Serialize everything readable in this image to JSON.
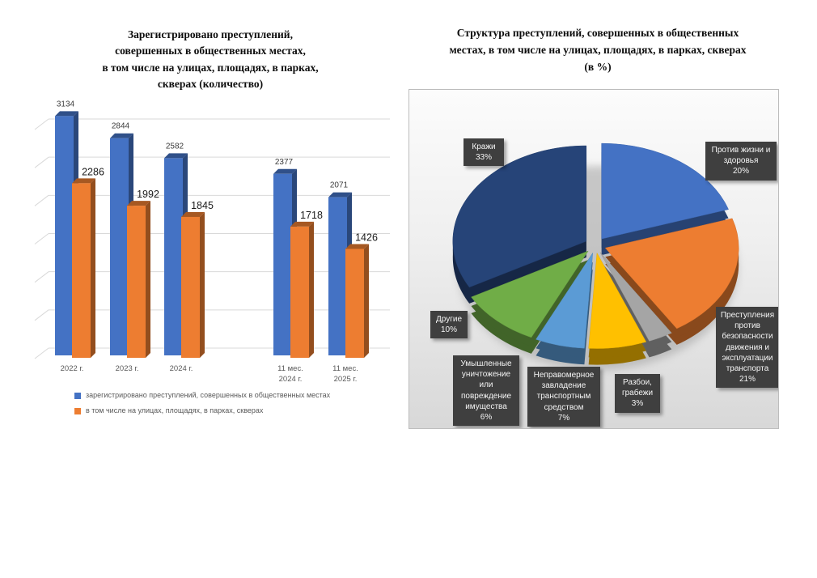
{
  "chart_data": [
    {
      "type": "bar",
      "title": "Зарегистрировано преступлений,\nсовершенных в общественных местах,\nв том числе на улицах, площадях, в парках,\nскверах (количество)",
      "categories": [
        "2022 г.",
        "2023 г.",
        "2024 г.",
        "11 мес.\n2024 г.",
        "11 мес.\n2025 г."
      ],
      "series": [
        {
          "name": "зарегистрировано преступлений, совершенных в общественных местах",
          "color": "#4472C4",
          "values": [
            3134,
            2844,
            2582,
            2377,
            2071
          ]
        },
        {
          "name": "в том числе на улицах, площадях, в парках, скверах",
          "color": "#ED7D31",
          "values": [
            2286,
            1992,
            1845,
            1718,
            1426
          ]
        }
      ],
      "ylim": [
        0,
        3500
      ],
      "gridline_step": 500,
      "grid": true,
      "legend_position": "bottom",
      "style": "3d-column"
    },
    {
      "type": "pie",
      "title": "Структура преступлений, совершенных в общественных\nместах, в том числе на улицах, площадях, в парках, скверах\n(в %)",
      "unit": "%",
      "style": "3d-exploded",
      "label_box_color": "#3F3F3F",
      "slices": [
        {
          "label": "Против жизни и здоровья",
          "value": 20,
          "color": "#4472C4"
        },
        {
          "label": "Преступления против безопасности движения и эксплуатации транспорта",
          "value": 21,
          "color": "#ED7D31"
        },
        {
          "label": "Разбои, грабежи",
          "value": 3,
          "color": "#A5A5A5"
        },
        {
          "label": "Неправомерное завладение транспортным средством",
          "value": 7,
          "color": "#FFC000"
        },
        {
          "label": "Умышленные уничтожение или повреждение имущества",
          "value": 6,
          "color": "#5B9BD5"
        },
        {
          "label": "Другие",
          "value": 10,
          "color": "#70AD47"
        },
        {
          "label": "Кражи",
          "value": 33,
          "color": "#264478"
        }
      ]
    }
  ]
}
